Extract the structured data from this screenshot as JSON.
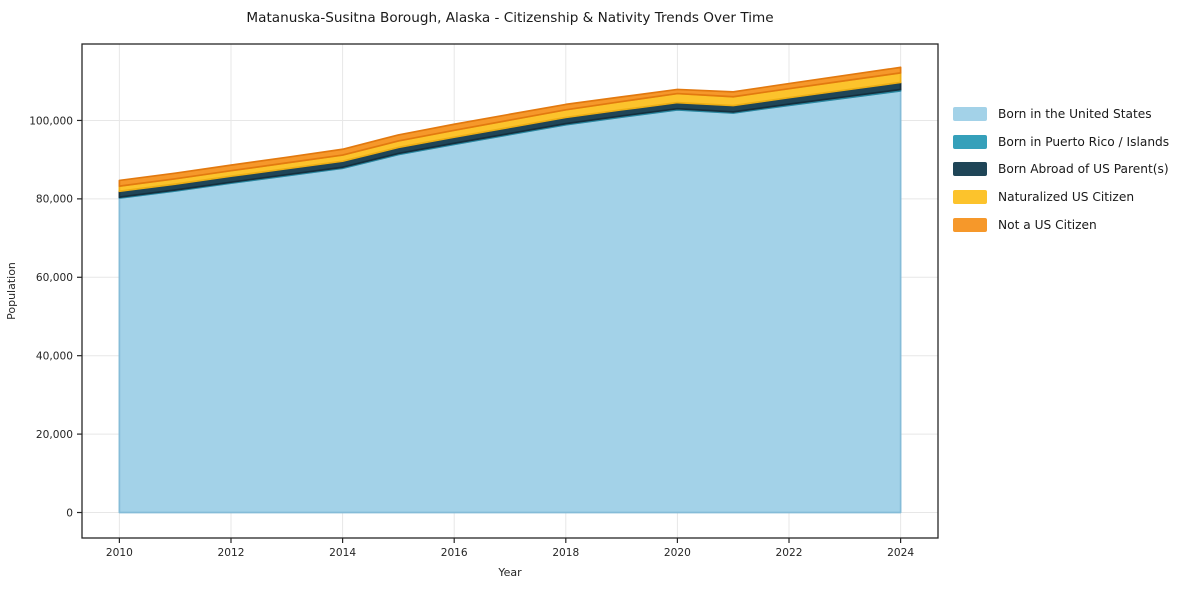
{
  "chart_data": {
    "type": "area",
    "stacked": true,
    "title": "Matanuska-Susitna Borough, Alaska - Citizenship & Nativity Trends Over Time",
    "xlabel": "Year",
    "ylabel": "Population",
    "grid": true,
    "legend_position": "right-outside",
    "background_color": "#ffffff",
    "spine_color": "#262626",
    "grid_color": "#e7e7e7",
    "x": [
      2010,
      2011,
      2012,
      2013,
      2014,
      2015,
      2016,
      2017,
      2018,
      2019,
      2020,
      2021,
      2022,
      2023,
      2024
    ],
    "x_ticks": [
      2010,
      2012,
      2014,
      2016,
      2018,
      2020,
      2022,
      2024
    ],
    "x_tick_labels": [
      "2010",
      "2012",
      "2014",
      "2016",
      "2018",
      "2020",
      "2022",
      "2024"
    ],
    "y_ticks": [
      0,
      20000,
      40000,
      60000,
      80000,
      100000
    ],
    "y_tick_labels": [
      "0",
      "20,000",
      "40,000",
      "60,000",
      "80,000",
      "100,000"
    ],
    "xlim": [
      2009.33,
      2024.67
    ],
    "ylim": [
      -6500,
      119500
    ],
    "series": [
      {
        "name": "Born in the United States",
        "color": "#a3d2e8",
        "edge": "#85bcd8",
        "values": [
          80200,
          82000,
          84000,
          85900,
          87800,
          91300,
          93900,
          96400,
          98900,
          100850,
          102700,
          101900,
          103850,
          105700,
          107550
        ]
      },
      {
        "name": "Born in Puerto Rico / Islands",
        "color": "#35a0ba",
        "edge": "#2a87a0",
        "values": [
          250,
          255,
          260,
          265,
          270,
          280,
          285,
          290,
          295,
          300,
          305,
          295,
          310,
          330,
          350
        ]
      },
      {
        "name": "Born Abroad of US Parent(s)",
        "color": "#1f4557",
        "edge": "#152f3d",
        "values": [
          1500,
          1510,
          1520,
          1530,
          1540,
          1550,
          1550,
          1560,
          1570,
          1560,
          1550,
          1600,
          1650,
          1720,
          1790
        ]
      },
      {
        "name": "Naturalized US Citizen",
        "color": "#fcc32c",
        "edge": "#edae14",
        "values": [
          1300,
          1350,
          1400,
          1480,
          1560,
          1650,
          1750,
          1850,
          1950,
          2100,
          2300,
          2250,
          2300,
          2380,
          2450
        ]
      },
      {
        "name": "Not a US Citizen",
        "color": "#f6982a",
        "edge": "#e2790f",
        "values": [
          1450,
          1440,
          1430,
          1420,
          1480,
          1520,
          1550,
          1480,
          1380,
          1200,
          1050,
          1250,
          1300,
          1350,
          1400
        ]
      }
    ]
  }
}
